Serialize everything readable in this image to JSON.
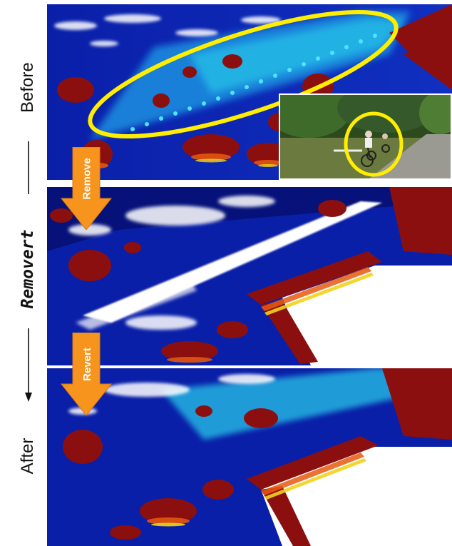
{
  "figure": {
    "label_before": "Before",
    "label_method": "Removert",
    "label_after": "After",
    "step_remove": "Remove",
    "step_revert": "Revert"
  },
  "colors": {
    "ground": "#0a1fa8",
    "ground_dark": "#06127a",
    "wall_cyan": "#26c6e8",
    "object_red": "#8b0f0f",
    "object_orange": "#e65a10",
    "object_yellow": "#f2d21a",
    "highlight": "#ffee00",
    "arrow": "#f7941d",
    "free_space": "#ffffff"
  },
  "panels": [
    "before",
    "remove",
    "after"
  ]
}
